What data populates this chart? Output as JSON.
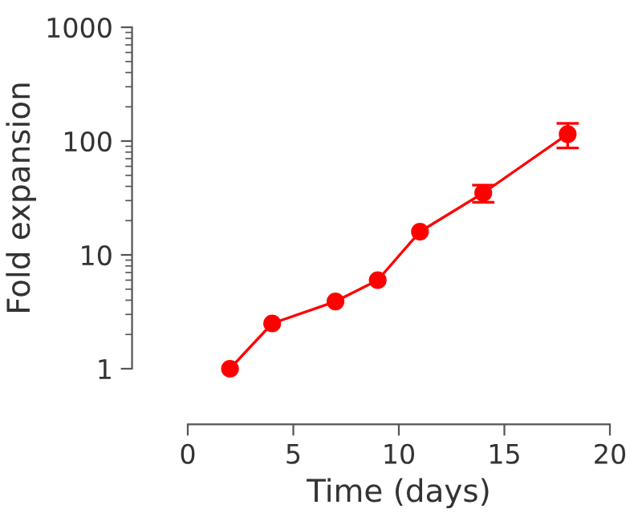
{
  "chart_data": {
    "type": "line",
    "xlabel": "Time (days)",
    "ylabel": "Fold expansion",
    "x": [
      2,
      4,
      7,
      9,
      11,
      14,
      18
    ],
    "series": [
      {
        "color": "#ff0000",
        "values": [
          1,
          2.5,
          3.9,
          6,
          16,
          35,
          115
        ],
        "errors": [
          null,
          null,
          null,
          null,
          null,
          [
            29,
            41
          ],
          [
            87,
            143
          ]
        ]
      }
    ],
    "xlim": [
      0,
      20
    ],
    "xticks": [
      0,
      5,
      10,
      15,
      20
    ],
    "ylim": [
      1,
      1000
    ],
    "yticks": [
      1,
      10,
      100,
      1000
    ],
    "log": "y",
    "grid": false,
    "marker": "circle",
    "line_style": "solid"
  }
}
